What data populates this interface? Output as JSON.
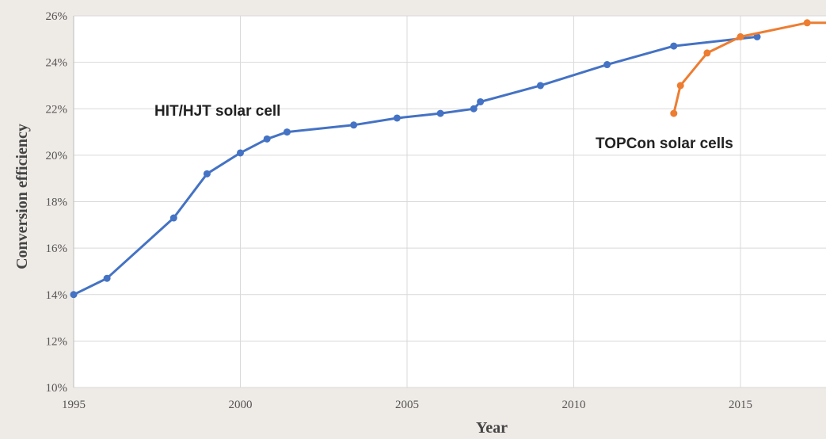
{
  "chart_data": {
    "type": "line",
    "xlabel": "Year",
    "ylabel": "Conversion efficiency",
    "xlim": [
      1995,
      2018
    ],
    "ylim": [
      10,
      26
    ],
    "x_ticks": [
      1995,
      2000,
      2005,
      2010,
      2015
    ],
    "x_tick_labels": [
      "1995",
      "2000",
      "2005",
      "2010",
      "2015"
    ],
    "y_ticks": [
      10,
      12,
      14,
      16,
      18,
      20,
      22,
      24,
      26
    ],
    "y_tick_labels": [
      "10%",
      "12%",
      "14%",
      "16%",
      "18%",
      "20%",
      "22%",
      "24%",
      "26%"
    ],
    "grid": true,
    "legend": "none",
    "colors": {
      "background": "#eeeae6",
      "plot_area": "#ffffff",
      "grid": "#d9d9d9",
      "hit": "#4472c4",
      "topcon": "#ed7d31"
    },
    "series": [
      {
        "name": "HIT/HJT solar cell",
        "color": "#4472c4",
        "points": [
          [
            1995.0,
            14.0
          ],
          [
            1996.0,
            14.7
          ],
          [
            1998.0,
            17.3
          ],
          [
            1999.0,
            19.2
          ],
          [
            2000.0,
            20.1
          ],
          [
            2000.8,
            20.7
          ],
          [
            2001.4,
            21.0
          ],
          [
            2003.4,
            21.3
          ],
          [
            2004.7,
            21.6
          ],
          [
            2006.0,
            21.8
          ],
          [
            2007.0,
            22.0
          ],
          [
            2007.2,
            22.3
          ],
          [
            2009.0,
            23.0
          ],
          [
            2011.0,
            23.9
          ],
          [
            2013.0,
            24.7
          ],
          [
            2015.5,
            25.1
          ]
        ]
      },
      {
        "name": "TOPCon solar cells",
        "color": "#ed7d31",
        "points": [
          [
            2013.0,
            21.8
          ],
          [
            2013.2,
            23.0
          ],
          [
            2014.0,
            24.4
          ],
          [
            2015.0,
            25.1
          ],
          [
            2017.0,
            25.7
          ],
          [
            2018.0,
            25.7
          ]
        ]
      }
    ]
  }
}
